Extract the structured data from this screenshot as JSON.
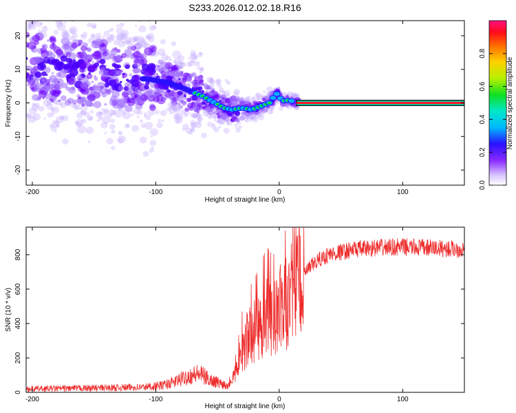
{
  "title": "S233.2026.012.02.18.R16",
  "colors": {
    "spectrogram_blob": "#6b00ff",
    "snr_line": "#ee2a2a",
    "axis": "#000000",
    "band_outline": "#000000"
  },
  "chart_data": [
    {
      "type": "heatmap",
      "name": "spectrogram",
      "xlabel": "Height of straight line (km)",
      "ylabel": "Frequency (Hz)",
      "xlim": [
        -205,
        150
      ],
      "ylim": [
        -24.5,
        24.5
      ],
      "x_ticks": [
        -200,
        -100,
        0,
        100
      ],
      "x_tick_labels": [
        "-200",
        "-100",
        "0",
        "100"
      ],
      "y_ticks": [
        -20,
        -10,
        0,
        10,
        20
      ],
      "y_tick_labels": [
        "-20",
        "-10",
        "0",
        "10",
        "20"
      ],
      "ridge": {
        "x": [
          -205,
          -180,
          -160,
          -140,
          -120,
          -105,
          -90,
          -75,
          -62,
          -52,
          -45,
          -38,
          -30,
          -22,
          -15,
          -8,
          -4,
          -1,
          2,
          6,
          10,
          15,
          22,
          150
        ],
        "y": [
          11,
          10,
          9,
          8.5,
          7.5,
          7,
          6,
          4,
          2,
          0,
          -1.5,
          -2,
          -1.5,
          -2,
          -1,
          0,
          2,
          3,
          0.5,
          0.8,
          0.6,
          0,
          0,
          0
        ]
      },
      "band": {
        "frequency": 0,
        "x_start": 14,
        "x_end": 150
      },
      "colorbar": {
        "label": "Normalized spectral amplitude",
        "range": [
          0,
          1
        ],
        "ticks": [
          0.0,
          0.2,
          0.4,
          0.6,
          0.8
        ],
        "tick_labels": [
          "0.0",
          "0.2",
          "0.4",
          "0.6",
          "0.8"
        ]
      }
    },
    {
      "type": "line",
      "name": "snr",
      "xlabel": "Height of straight line (km)",
      "ylabel": "SNR (10 * v/v)",
      "xlim": [
        -205,
        150
      ],
      "ylim": [
        0,
        960
      ],
      "x_ticks": [
        -200,
        -100,
        0,
        100
      ],
      "x_tick_labels": [
        "-200",
        "-100",
        "0",
        "100"
      ],
      "y_ticks": [
        0,
        200,
        400,
        600,
        800
      ],
      "y_tick_labels": [
        "0",
        "200",
        "400",
        "600",
        "800"
      ],
      "envelope": {
        "x": [
          -205,
          -150,
          -110,
          -95,
          -85,
          -75,
          -65,
          -55,
          -42,
          -35,
          -30,
          -25,
          -20,
          -15,
          -10,
          -5,
          0,
          5,
          10,
          15,
          20,
          30,
          40,
          60,
          80,
          100,
          120,
          150
        ],
        "y": [
          20,
          25,
          30,
          40,
          60,
          90,
          110,
          70,
          40,
          120,
          250,
          320,
          350,
          400,
          450,
          420,
          480,
          500,
          580,
          620,
          690,
          760,
          800,
          830,
          840,
          845,
          840,
          830
        ]
      }
    }
  ]
}
